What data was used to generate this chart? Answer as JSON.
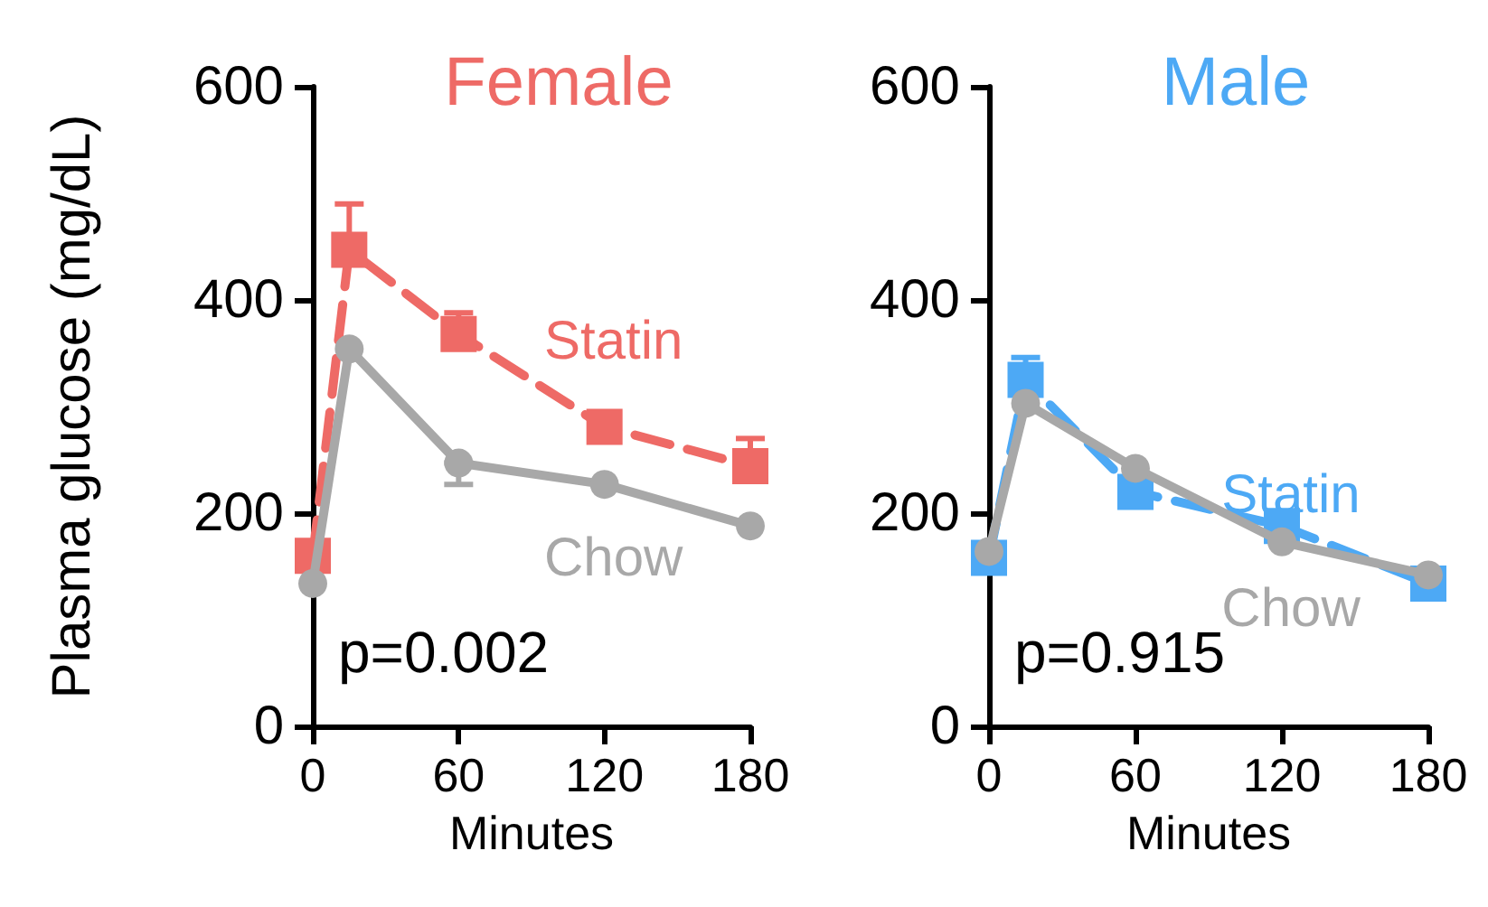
{
  "chart_data": [
    {
      "type": "line",
      "title": "Female",
      "xlabel": "Minutes",
      "ylabel": "Plasma glucose (mg/dL)",
      "x": [
        0,
        15,
        60,
        120,
        180
      ],
      "series": [
        {
          "name": "Statin",
          "color": "#ee6a66",
          "marker": "square",
          "line_style": "dashed",
          "values": [
            160,
            447,
            368,
            281,
            244
          ],
          "errors": [
            null,
            [
              447,
              490
            ],
            [
              368,
              388
            ],
            null,
            [
              244,
              270
            ]
          ]
        },
        {
          "name": "Chow",
          "color": "#a8a8a8",
          "marker": "circle",
          "line_style": "solid",
          "values": [
            134,
            354,
            247,
            227,
            188
          ],
          "errors": [
            null,
            null,
            [
              227,
              247
            ],
            null,
            null
          ]
        }
      ],
      "xlim": [
        0,
        180
      ],
      "xticks": [
        0,
        60,
        120,
        180
      ],
      "ylim": [
        0,
        600
      ],
      "yticks": [
        0,
        200,
        400,
        600
      ],
      "grid": false,
      "legend": false,
      "annotations": [
        "p=0.002"
      ]
    },
    {
      "type": "line",
      "title": "Male",
      "xlabel": "Minutes",
      "x": [
        0,
        15,
        60,
        120,
        180
      ],
      "series": [
        {
          "name": "Statin",
          "color": "#4da9f5",
          "marker": "square",
          "line_style": "dashed",
          "values": [
            158,
            325,
            220,
            188,
            134
          ],
          "errors": [
            null,
            [
              325,
              346
            ],
            null,
            null,
            null
          ]
        },
        {
          "name": "Chow",
          "color": "#a8a8a8",
          "marker": "circle",
          "line_style": "solid",
          "values": [
            164,
            303,
            242,
            173,
            142
          ]
        }
      ],
      "xlim": [
        0,
        180
      ],
      "xticks": [
        0,
        60,
        120,
        180
      ],
      "ylim": [
        0,
        600
      ],
      "yticks": [
        0,
        200,
        400,
        600
      ],
      "grid": false,
      "legend": false,
      "annotations": [
        "p=0.915"
      ]
    }
  ]
}
